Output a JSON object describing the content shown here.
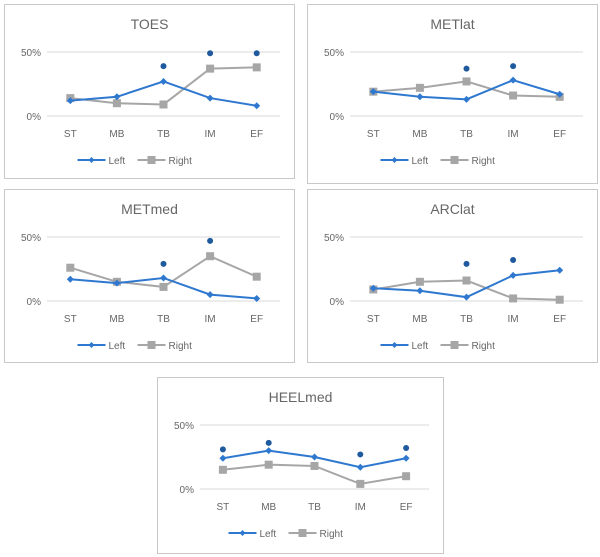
{
  "chart_data": [
    {
      "type": "line",
      "title": "TOES",
      "categories": [
        "ST",
        "MB",
        "TB",
        "IM",
        "EF"
      ],
      "yticks": [
        "0%",
        "50%"
      ],
      "ylim": [
        0,
        50
      ],
      "series": [
        {
          "name": "Left",
          "values": [
            12,
            15,
            27,
            14,
            8
          ]
        },
        {
          "name": "Right",
          "values": [
            14,
            10,
            9,
            37,
            38
          ]
        }
      ],
      "significance_markers": [
        {
          "category": "TB",
          "value": 39
        },
        {
          "category": "IM",
          "value": 49
        },
        {
          "category": "EF",
          "value": 49
        }
      ],
      "legend": "bottom"
    },
    {
      "type": "line",
      "title": "METlat",
      "categories": [
        "ST",
        "MB",
        "TB",
        "IM",
        "EF"
      ],
      "yticks": [
        "0%",
        "50%"
      ],
      "ylim": [
        0,
        50
      ],
      "series": [
        {
          "name": "Left",
          "values": [
            19,
            15,
            13,
            28,
            17
          ]
        },
        {
          "name": "Right",
          "values": [
            19,
            22,
            27,
            16,
            15
          ]
        }
      ],
      "significance_markers": [
        {
          "category": "TB",
          "value": 37
        },
        {
          "category": "IM",
          "value": 39
        }
      ],
      "legend": "bottom"
    },
    {
      "type": "line",
      "title": "METmed",
      "categories": [
        "ST",
        "MB",
        "TB",
        "IM",
        "EF"
      ],
      "yticks": [
        "0%",
        "50%"
      ],
      "ylim": [
        0,
        50
      ],
      "series": [
        {
          "name": "Left",
          "values": [
            17,
            14,
            18,
            5,
            2
          ]
        },
        {
          "name": "Right",
          "values": [
            26,
            15,
            11,
            35,
            19
          ]
        }
      ],
      "significance_markers": [
        {
          "category": "TB",
          "value": 29
        },
        {
          "category": "IM",
          "value": 47
        }
      ],
      "legend": "bottom"
    },
    {
      "type": "line",
      "title": "ARClat",
      "categories": [
        "ST",
        "MB",
        "TB",
        "IM",
        "EF"
      ],
      "yticks": [
        "0%",
        "50%"
      ],
      "ylim": [
        0,
        50
      ],
      "series": [
        {
          "name": "Left",
          "values": [
            10,
            8,
            3,
            20,
            24
          ]
        },
        {
          "name": "Right",
          "values": [
            9,
            15,
            16,
            2,
            1
          ]
        }
      ],
      "significance_markers": [
        {
          "category": "TB",
          "value": 29
        },
        {
          "category": "IM",
          "value": 32
        }
      ],
      "legend": "bottom"
    },
    {
      "type": "line",
      "title": "HEELmed",
      "categories": [
        "ST",
        "MB",
        "TB",
        "IM",
        "EF"
      ],
      "yticks": [
        "0%",
        "50%"
      ],
      "ylim": [
        0,
        50
      ],
      "series": [
        {
          "name": "Left",
          "values": [
            24,
            30,
            25,
            17,
            24
          ]
        },
        {
          "name": "Right",
          "values": [
            15,
            19,
            18,
            4,
            10
          ]
        }
      ],
      "significance_markers": [
        {
          "category": "ST",
          "value": 31
        },
        {
          "category": "MB",
          "value": 36
        },
        {
          "category": "IM",
          "value": 27
        },
        {
          "category": "EF",
          "value": 32
        }
      ],
      "legend": "bottom"
    }
  ],
  "colors": {
    "left": "#2f78d0",
    "right": "#a6a6a6",
    "marker": "#1f5a9e",
    "grid": "#d9d9d9"
  }
}
